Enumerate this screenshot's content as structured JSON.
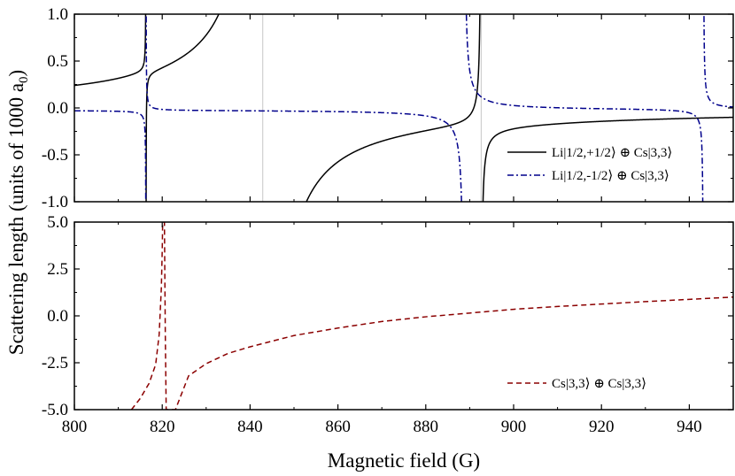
{
  "chart_data": [
    {
      "type": "line",
      "panel": "top",
      "xlabel": "",
      "ylabel": "Scattering length (units of 1000 a0)",
      "xlim": [
        800,
        950
      ],
      "ylim": [
        -1.0,
        1.0
      ],
      "y_ticks": [
        "1.0",
        "0.5",
        "0.0",
        "-0.5",
        "-1.0"
      ],
      "x_ticks": [
        800,
        820,
        840,
        860,
        880,
        900,
        920,
        940
      ],
      "legend_position": "bottom-right",
      "series": [
        {
          "name": "Li|1/2,+1/2⟩ ⊕ Cs|3,3⟩",
          "color": "#000000",
          "style": "solid",
          "background": 0.0,
          "resonances": [
            {
              "B0": 816.3,
              "width": 0.05
            },
            {
              "B0": 842.9,
              "width": 10.0
            },
            {
              "B0": 892.6,
              "width": 0.35
            }
          ]
        },
        {
          "name": "Li|1/2,-1/2⟩ ⊕ Cs|3,3⟩",
          "color": "#00008b",
          "style": "dashdot",
          "background": -0.02,
          "resonances": [
            {
              "B0": 816.3,
              "width": -0.05
            },
            {
              "B0": 888.7,
              "width": -0.55
            },
            {
              "B0": 943.2,
              "width": -0.14
            }
          ]
        }
      ],
      "vertical_lines": [
        842.9,
        892.6
      ]
    },
    {
      "type": "line",
      "panel": "bottom",
      "xlabel": "Magnetic field (G)",
      "ylabel": "",
      "xlim": [
        800,
        950
      ],
      "ylim": [
        -5.0,
        5.0
      ],
      "y_ticks": [
        "5.0",
        "2.5",
        "0.0",
        "-2.5",
        "-5.0"
      ],
      "x_ticks": [
        "800",
        "820",
        "840",
        "860",
        "880",
        "900",
        "920",
        "940"
      ],
      "legend_position": "bottom-right",
      "series": [
        {
          "name": "Cs|3,3⟩ ⊕ Cs|3,3⟩",
          "color": "#8b0000",
          "style": "dashed",
          "points": [
            [
              813.0,
              -5.0
            ],
            [
              815.0,
              -4.4
            ],
            [
              817.0,
              -3.6
            ],
            [
              818.5,
              -2.6
            ],
            [
              819.3,
              -1.0
            ],
            [
              819.8,
              1.5
            ],
            [
              820.0,
              3.5
            ],
            [
              820.1,
              5.0
            ],
            [
              820.5,
              5.0
            ],
            [
              820.7,
              -1.0
            ],
            [
              820.9,
              -5.0
            ],
            [
              823.0,
              -5.0
            ],
            [
              826.0,
              -3.2
            ],
            [
              830.0,
              -2.55
            ],
            [
              835.0,
              -2.0
            ],
            [
              840.0,
              -1.65
            ],
            [
              850.0,
              -1.05
            ],
            [
              860.0,
              -0.65
            ],
            [
              870.0,
              -0.3
            ],
            [
              880.0,
              -0.05
            ],
            [
              890.0,
              0.15
            ],
            [
              900.0,
              0.35
            ],
            [
              910.0,
              0.5
            ],
            [
              920.0,
              0.63
            ],
            [
              930.0,
              0.76
            ],
            [
              940.0,
              0.88
            ],
            [
              950.0,
              1.0
            ]
          ]
        }
      ]
    }
  ],
  "labels": {
    "ylabel_main": "Scattering length (units of 1000 a",
    "ylabel_sub": "0",
    "ylabel_end": ")",
    "xlabel": "Magnetic field (G)",
    "legend_top_1": "Li|1/2,+1/2⟩ ⊕ Cs|3,3⟩",
    "legend_top_2": "Li|1/2,-1/2⟩ ⊕ Cs|3,3⟩",
    "legend_bottom_1": "Cs|3,3⟩ ⊕ Cs|3,3⟩"
  }
}
